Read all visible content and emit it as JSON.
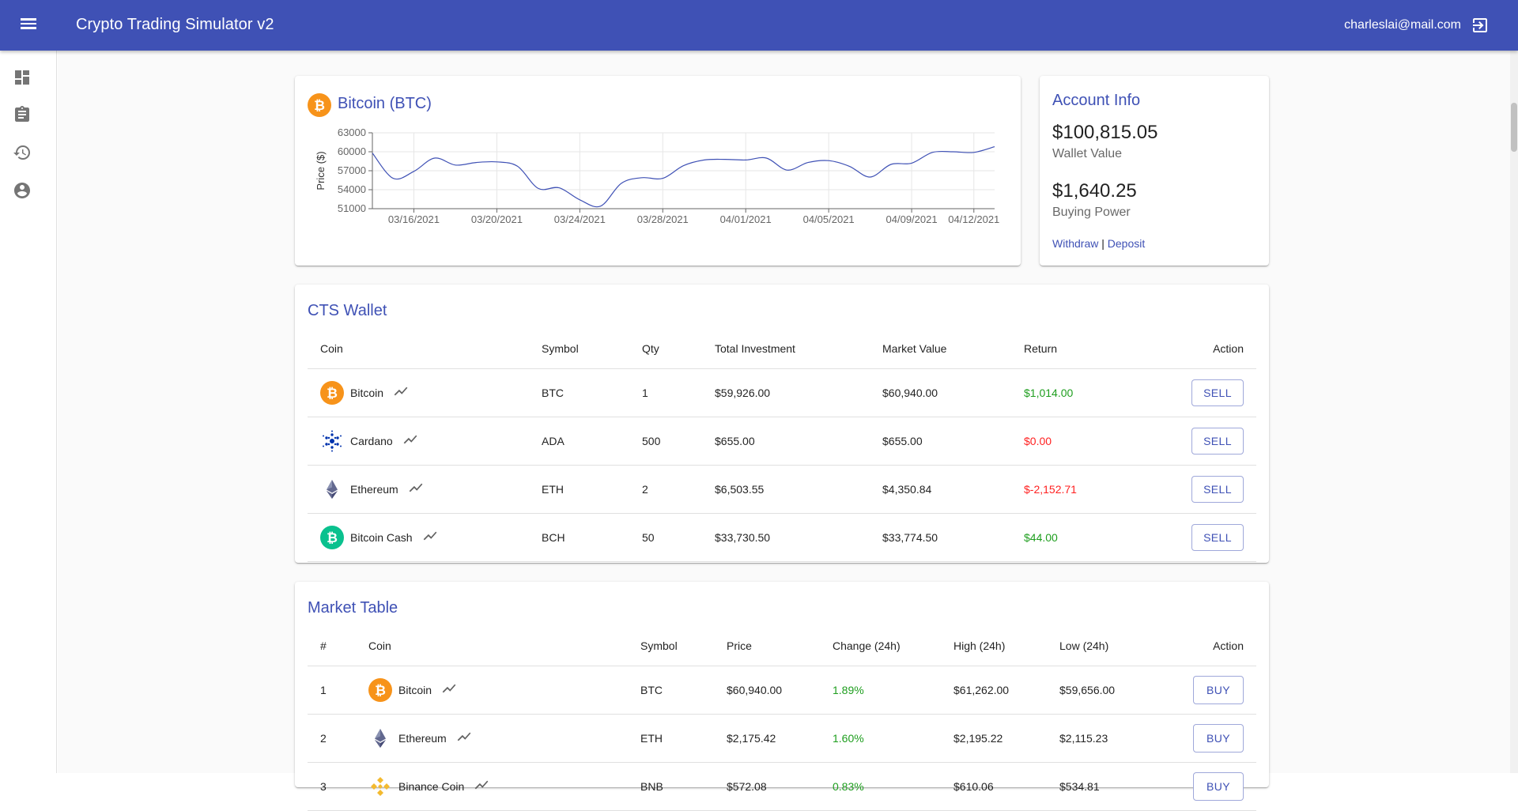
{
  "app": {
    "title": "Crypto Trading Simulator v2",
    "user_email": "charleslai@mail.com"
  },
  "icons": {
    "menu": "menu-icon",
    "logout": "logout-icon",
    "dashboard": "dashboard-icon",
    "orders": "clipboard-icon",
    "history": "history-icon",
    "account": "account-circle-icon"
  },
  "colors": {
    "primary": "#3f51b5",
    "positive": "#1e9e1e",
    "negative": "#ff2222",
    "bitcoin": "#f7931a",
    "bitcoin_cash": "#0ac18e"
  },
  "price_card": {
    "title": "Bitcoin (BTC)"
  },
  "chart_data": {
    "type": "line",
    "title": "",
    "xlabel": "",
    "ylabel": "Price ($)",
    "ylim": [
      51000,
      63000
    ],
    "yticks": [
      51000,
      54000,
      57000,
      60000,
      63000
    ],
    "xticks": [
      "03/16/2021",
      "03/20/2021",
      "03/24/2021",
      "03/28/2021",
      "04/01/2021",
      "04/05/2021",
      "04/09/2021",
      "04/12/2021"
    ],
    "x": [
      "03/14/2021",
      "03/15/2021",
      "03/16/2021",
      "03/17/2021",
      "03/18/2021",
      "03/19/2021",
      "03/20/2021",
      "03/21/2021",
      "03/22/2021",
      "03/23/2021",
      "03/24/2021",
      "03/25/2021",
      "03/26/2021",
      "03/27/2021",
      "03/28/2021",
      "03/29/2021",
      "03/30/2021",
      "03/31/2021",
      "04/01/2021",
      "04/02/2021",
      "04/03/2021",
      "04/04/2021",
      "04/05/2021",
      "04/06/2021",
      "04/07/2021",
      "04/08/2021",
      "04/09/2021",
      "04/10/2021",
      "04/11/2021",
      "04/12/2021",
      "04/13/2021"
    ],
    "series": [
      {
        "values": [
          59800,
          55800,
          56900,
          59000,
          57900,
          58300,
          58400,
          57700,
          54200,
          54300,
          52400,
          51400,
          55000,
          55900,
          55800,
          57800,
          58700,
          58800,
          58700,
          59000,
          57100,
          58300,
          58600,
          57700,
          56000,
          58000,
          58200,
          59900,
          60000,
          59900,
          60800
        ]
      }
    ],
    "grid": true,
    "legend": "none"
  },
  "account": {
    "title": "Account Info",
    "wallet_value": "$100,815.05",
    "wallet_label": "Wallet Value",
    "buying_power": "$1,640.25",
    "buying_label": "Buying Power",
    "withdraw": "Withdraw",
    "separator": "|",
    "deposit": "Deposit"
  },
  "wallet": {
    "title": "CTS Wallet",
    "columns": [
      "Coin",
      "Symbol",
      "Qty",
      "Total Investment",
      "Market Value",
      "Return",
      "Action"
    ],
    "rows": [
      {
        "coin": "Bitcoin",
        "icon": "bitcoin-icon",
        "symbol": "BTC",
        "qty": "1",
        "investment": "$59,926.00",
        "market": "$60,940.00",
        "return": "$1,014.00",
        "return_sign": "positive",
        "action": "SELL"
      },
      {
        "coin": "Cardano",
        "icon": "cardano-icon",
        "symbol": "ADA",
        "qty": "500",
        "investment": "$655.00",
        "market": "$655.00",
        "return": "$0.00",
        "return_sign": "negative",
        "action": "SELL"
      },
      {
        "coin": "Ethereum",
        "icon": "ethereum-icon",
        "symbol": "ETH",
        "qty": "2",
        "investment": "$6,503.55",
        "market": "$4,350.84",
        "return": "$-2,152.71",
        "return_sign": "negative",
        "action": "SELL"
      },
      {
        "coin": "Bitcoin Cash",
        "icon": "bitcoin-cash-icon",
        "symbol": "BCH",
        "qty": "50",
        "investment": "$33,730.50",
        "market": "$33,774.50",
        "return": "$44.00",
        "return_sign": "positive",
        "action": "SELL"
      }
    ]
  },
  "market": {
    "title": "Market Table",
    "columns": [
      "#",
      "Coin",
      "Symbol",
      "Price",
      "Change (24h)",
      "High (24h)",
      "Low (24h)",
      "Action"
    ],
    "rows": [
      {
        "rank": "1",
        "coin": "Bitcoin",
        "icon": "bitcoin-icon",
        "symbol": "BTC",
        "price": "$60,940.00",
        "change": "1.89%",
        "high": "$61,262.00",
        "low": "$59,656.00",
        "action": "BUY"
      },
      {
        "rank": "2",
        "coin": "Ethereum",
        "icon": "ethereum-icon",
        "symbol": "ETH",
        "price": "$2,175.42",
        "change": "1.60%",
        "high": "$2,195.22",
        "low": "$2,115.23",
        "action": "BUY"
      },
      {
        "rank": "3",
        "coin": "Binance Coin",
        "icon": "binance-coin-icon",
        "symbol": "BNB",
        "price": "$572.08",
        "change": "0.83%",
        "high": "$610.06",
        "low": "$534.81",
        "action": "BUY"
      }
    ]
  }
}
